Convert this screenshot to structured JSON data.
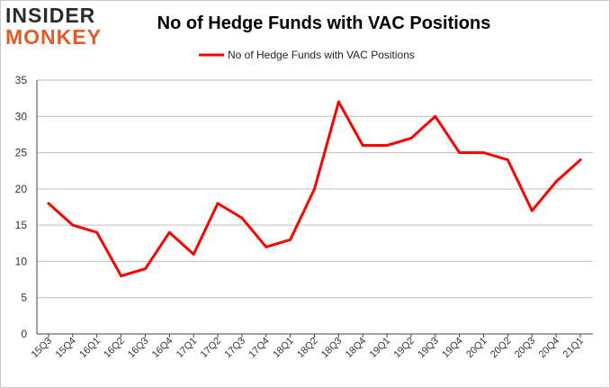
{
  "logo": {
    "line1": "INSIDER",
    "line2": "MONKEY"
  },
  "chart_data": {
    "type": "line",
    "title": "No of Hedge Funds with VAC Positions",
    "xlabel": "",
    "ylabel": "",
    "ylim": [
      0,
      35
    ],
    "yticks": [
      0,
      5,
      10,
      15,
      20,
      25,
      30,
      35
    ],
    "grid": true,
    "legend": "top-center",
    "categories": [
      "15Q3",
      "15Q4",
      "16Q1",
      "16Q2",
      "16Q3",
      "16Q4",
      "17Q1",
      "17Q2",
      "17Q3",
      "17Q4",
      "18Q1",
      "18Q2",
      "18Q3",
      "18Q4",
      "19Q1",
      "19Q2",
      "19Q3",
      "19Q4",
      "20Q1",
      "20Q2",
      "20Q3",
      "20Q4",
      "21Q1"
    ],
    "series": [
      {
        "name": "No of Hedge Funds with VAC Positions",
        "color": "#ff0000",
        "values": [
          18,
          15,
          14,
          8,
          9,
          14,
          11,
          18,
          16,
          12,
          13,
          20,
          32,
          26,
          26,
          27,
          30,
          25,
          25,
          24,
          17,
          21,
          24
        ]
      }
    ]
  }
}
